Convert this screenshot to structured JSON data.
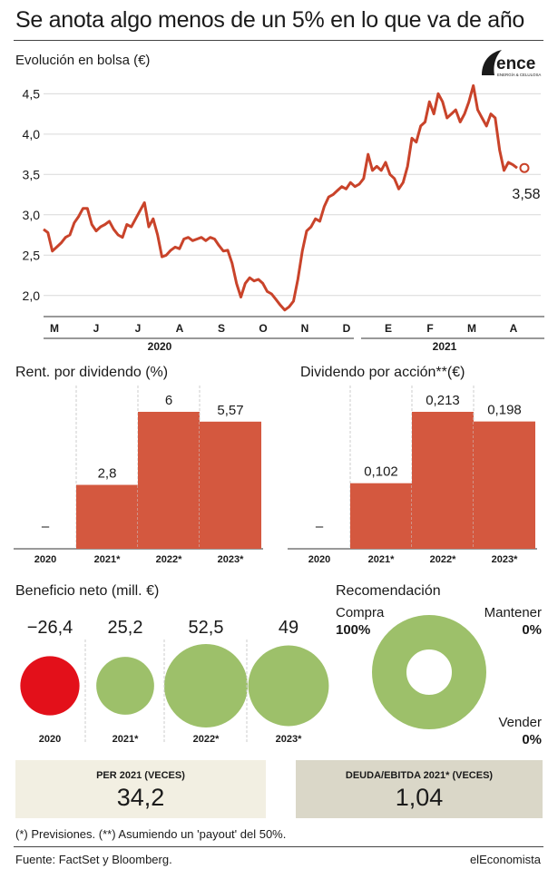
{
  "header": {
    "title": "Se anota algo menos de un 5% en lo que va de año",
    "logo_text": "ence",
    "logo_subtext": "ENERGÍA & CELULOSA"
  },
  "colors": {
    "line": "#c9432a",
    "bar": "#d4583f",
    "green": "#9dc06a",
    "red": "#e3101a",
    "box1": "#f2efe2",
    "box2": "#dad7c8"
  },
  "chart_data": [
    {
      "id": "stock",
      "type": "line",
      "title": "Evolución en bolsa (€)",
      "ylim": [
        1.75,
        4.65
      ],
      "yticks": [
        "4,5",
        "4,0",
        "3,5",
        "3,0",
        "2,5",
        "2,0"
      ],
      "ytick_values": [
        4.5,
        4.0,
        3.5,
        3.0,
        2.5,
        2.0
      ],
      "xticks": [
        "M",
        "J",
        "J",
        "A",
        "S",
        "O",
        "N",
        "D",
        "E",
        "F",
        "M",
        "A"
      ],
      "years": [
        "2020",
        "2021"
      ],
      "last_label": "3,58",
      "series": [
        {
          "values": [
            2.82,
            2.78,
            2.55,
            2.6,
            2.65,
            2.72,
            2.75,
            2.9,
            2.98,
            3.08,
            3.08,
            2.88,
            2.8,
            2.85,
            2.88,
            2.92,
            2.82,
            2.75,
            2.72,
            2.88,
            2.85,
            2.95,
            3.05,
            3.15,
            2.85,
            2.95,
            2.75,
            2.48,
            2.5,
            2.56,
            2.6,
            2.58,
            2.7,
            2.72,
            2.68,
            2.7,
            2.72,
            2.68,
            2.72,
            2.7,
            2.62,
            2.55,
            2.56,
            2.4,
            2.15,
            1.98,
            2.15,
            2.22,
            2.18,
            2.2,
            2.15,
            2.05,
            2.02,
            1.95,
            1.88,
            1.82,
            1.86,
            1.93,
            2.2,
            2.55,
            2.8,
            2.85,
            2.95,
            2.92,
            3.1,
            3.22,
            3.25,
            3.3,
            3.35,
            3.32,
            3.4,
            3.35,
            3.38,
            3.45,
            3.75,
            3.55,
            3.6,
            3.55,
            3.65,
            3.5,
            3.45,
            3.32,
            3.4,
            3.6,
            3.95,
            3.9,
            4.1,
            4.15,
            4.4,
            4.25,
            4.5,
            4.4,
            4.2,
            4.25,
            4.3,
            4.15,
            4.25,
            4.4,
            4.6,
            4.3,
            4.2,
            4.1,
            4.25,
            4.2,
            3.8,
            3.55,
            3.65,
            3.62,
            3.58
          ]
        }
      ]
    },
    {
      "id": "yield",
      "type": "bar",
      "title": "Rent. por dividendo (%)",
      "categories": [
        "2020",
        "2021*",
        "2022*",
        "2023*"
      ],
      "values": [
        null,
        2.8,
        6,
        5.57
      ],
      "labels": [
        "–",
        "2,8",
        "6",
        "5,57"
      ],
      "ylim": [
        0,
        6
      ]
    },
    {
      "id": "dps",
      "type": "bar",
      "title": "Dividendo por acción**(€)",
      "categories": [
        "2020",
        "2021*",
        "2022*",
        "2023*"
      ],
      "values": [
        null,
        0.102,
        0.213,
        0.198
      ],
      "labels": [
        "–",
        "0,102",
        "0,213",
        "0,198"
      ],
      "ylim": [
        0,
        0.213
      ]
    },
    {
      "id": "profit",
      "type": "scatter",
      "title": "Beneficio neto (mill. €)",
      "categories": [
        "2020",
        "2021*",
        "2022*",
        "2023*"
      ],
      "values": [
        -26.4,
        25.2,
        52.5,
        49
      ],
      "labels": [
        "−26,4",
        "25,2",
        "52,5",
        "49"
      ]
    },
    {
      "id": "recommendation",
      "type": "pie",
      "title": "Recomendación",
      "slices": [
        {
          "name": "Compra",
          "value": "100%"
        },
        {
          "name": "Mantener",
          "value": "0%"
        },
        {
          "name": "Vender",
          "value": "0%"
        }
      ]
    }
  ],
  "boxes": [
    {
      "label": "PER 2021 (VECES)",
      "value": "34,2"
    },
    {
      "label": "DEUDA/EBITDA 2021* (VECES)",
      "value": "1,04"
    }
  ],
  "footer": {
    "note": "(*) Previsiones. (**) Asumiendo un 'payout' del 50%.",
    "source": "Fuente: FactSet y Bloomberg.",
    "brand": "elEconomista"
  }
}
